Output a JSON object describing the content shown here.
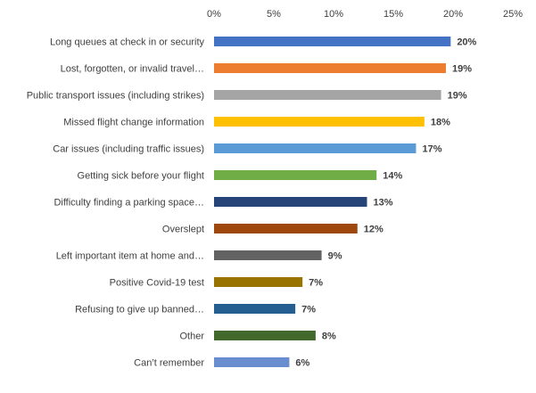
{
  "chart_data": {
    "type": "bar",
    "orientation": "horizontal",
    "title": "",
    "xlabel": "",
    "ylabel": "",
    "xlim": [
      0,
      25
    ],
    "x_ticks": [
      "0%",
      "5%",
      "10%",
      "15%",
      "20%",
      "25%"
    ],
    "x_tick_values": [
      0,
      5,
      10,
      15,
      20,
      25
    ],
    "grid": false,
    "legend": "none",
    "categories": [
      "Long queues at check in or security",
      "Lost, forgotten, or invalid travel…",
      "Public transport issues (including strikes)",
      "Missed flight change information",
      "Car issues (including traffic issues)",
      "Getting sick before your flight",
      "Difficulty finding a parking space…",
      "Overslept",
      "Left important item at home and…",
      "Positive Covid-19 test",
      "Refusing to give up banned…",
      "Other",
      "Can’t remember"
    ],
    "values": [
      19.8,
      19.4,
      19.0,
      17.6,
      16.9,
      13.6,
      12.8,
      12.0,
      9.0,
      7.4,
      6.8,
      8.5,
      6.3
    ],
    "value_labels": [
      "20%",
      "19%",
      "19%",
      "18%",
      "17%",
      "14%",
      "13%",
      "12%",
      "9%",
      "7%",
      "7%",
      "8%",
      "6%"
    ],
    "colors": [
      "#4472C4",
      "#ED7D31",
      "#A5A5A5",
      "#FFC000",
      "#5B9BD5",
      "#70AD47",
      "#264478",
      "#9E480E",
      "#636363",
      "#997300",
      "#255E91",
      "#43682B",
      "#698ED0"
    ]
  }
}
